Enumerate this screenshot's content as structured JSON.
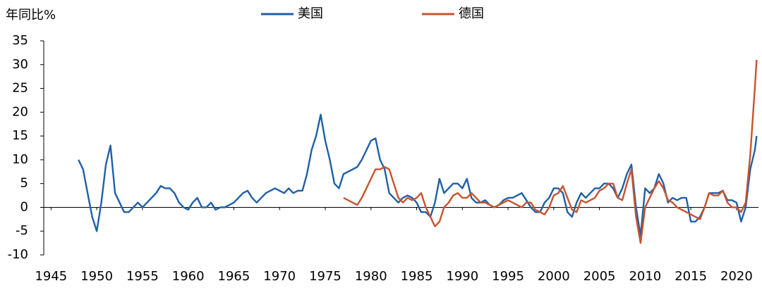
{
  "chart_data": {
    "type": "line",
    "ylabel": "年同比%",
    "xlim": [
      1944.2,
      2022.4
    ],
    "xticks": [
      1945,
      1950,
      1955,
      1960,
      1965,
      1970,
      1975,
      1980,
      1985,
      1990,
      1995,
      2000,
      2005,
      2010,
      2015,
      2020
    ],
    "ylim": [
      -10,
      35
    ],
    "yticks": [
      -10,
      -5,
      0,
      5,
      10,
      15,
      20,
      25,
      30,
      35
    ],
    "grid": false,
    "legend": "top",
    "series": [
      {
        "name": "美国",
        "color": "#1f5fa6",
        "x": [
          1948,
          1948.5,
          1949,
          1949.5,
          1950,
          1950.5,
          1951,
          1951.5,
          1952,
          1952.5,
          1953,
          1953.5,
          1954,
          1954.5,
          1955,
          1955.5,
          1956,
          1956.5,
          1957,
          1957.5,
          1958,
          1958.5,
          1959,
          1959.5,
          1960,
          1960.5,
          1961,
          1961.5,
          1962,
          1962.5,
          1963,
          1963.5,
          1964,
          1964.5,
          1965,
          1965.5,
          1966,
          1966.5,
          1967,
          1967.5,
          1968,
          1968.5,
          1969,
          1969.5,
          1970,
          1970.5,
          1971,
          1971.5,
          1972,
          1972.5,
          1973,
          1973.5,
          1974,
          1974.5,
          1975,
          1975.5,
          1976,
          1976.5,
          1977,
          1977.5,
          1978,
          1978.5,
          1979,
          1979.5,
          1980,
          1980.5,
          1981,
          1981.5,
          1982,
          1982.5,
          1983,
          1983.5,
          1984,
          1984.5,
          1985,
          1985.5,
          1986,
          1986.5,
          1987,
          1987.5,
          1988,
          1988.5,
          1989,
          1989.5,
          1990,
          1990.5,
          1991,
          1991.5,
          1992,
          1992.5,
          1993,
          1993.5,
          1994,
          1994.5,
          1995,
          1995.5,
          1996,
          1996.5,
          1997,
          1997.5,
          1998,
          1998.5,
          1999,
          1999.5,
          2000,
          2000.5,
          2001,
          2001.5,
          2002,
          2002.5,
          2003,
          2003.5,
          2004,
          2004.5,
          2005,
          2005.5,
          2006,
          2006.5,
          2007,
          2007.5,
          2008,
          2008.5,
          2009,
          2009.5,
          2010,
          2010.5,
          2011,
          2011.5,
          2012,
          2012.5,
          2013,
          2013.5,
          2014,
          2014.5,
          2015,
          2015.5,
          2016,
          2016.5,
          2017,
          2017.5,
          2018,
          2018.5,
          2019,
          2019.5,
          2020,
          2020.5,
          2021,
          2021.5,
          2022,
          2022.2
        ],
        "values": [
          10,
          8,
          3,
          -2,
          -5,
          1,
          9,
          13,
          3,
          1,
          -1,
          -1,
          0,
          1,
          0,
          1,
          2,
          3,
          4.5,
          4,
          4,
          3,
          1,
          0,
          -0.5,
          1,
          2,
          0,
          0,
          1,
          -0.5,
          0,
          0,
          0.5,
          1,
          2,
          3,
          3.5,
          2,
          1,
          2,
          3,
          3.5,
          4,
          3.5,
          3,
          4,
          3,
          3.5,
          3.5,
          7,
          12,
          15,
          19.5,
          14,
          10,
          5,
          4,
          7,
          7.5,
          8,
          8.5,
          10,
          12,
          14,
          14.5,
          10,
          8,
          3,
          2,
          1,
          2,
          2.5,
          2,
          1,
          -1,
          -1,
          -2,
          1,
          6,
          3,
          4,
          5,
          5,
          4,
          6,
          2,
          1,
          1,
          1.5,
          0.5,
          0,
          0.5,
          1.5,
          2,
          2,
          2.5,
          3,
          1.5,
          0,
          -1,
          -1,
          1,
          2,
          4,
          4,
          3,
          -1,
          -2,
          1,
          3,
          2,
          3,
          4,
          4,
          5,
          5,
          4,
          2,
          4,
          7,
          9,
          0,
          -6,
          4,
          3,
          4,
          7,
          5,
          1,
          2,
          1.5,
          2,
          2,
          -3,
          -3,
          -2,
          0,
          3,
          3,
          3,
          3.5,
          1.5,
          1.5,
          1,
          -3,
          0,
          8,
          12,
          15
        ]
      },
      {
        "name": "德国",
        "color": "#c8532e",
        "x": [
          1977,
          1977.5,
          1978,
          1978.5,
          1979,
          1979.5,
          1980,
          1980.5,
          1981,
          1981.5,
          1982,
          1982.5,
          1983,
          1983.5,
          1984,
          1984.5,
          1985,
          1985.5,
          1986,
          1986.5,
          1987,
          1987.5,
          1988,
          1988.5,
          1989,
          1989.5,
          1990,
          1990.5,
          1991,
          1991.5,
          1992,
          1992.5,
          1993,
          1993.5,
          1994,
          1994.5,
          1995,
          1995.5,
          1996,
          1996.5,
          1997,
          1997.5,
          1998,
          1998.5,
          1999,
          1999.5,
          2000,
          2000.5,
          2001,
          2001.5,
          2002,
          2002.5,
          2003,
          2003.5,
          2004,
          2004.5,
          2005,
          2005.5,
          2006,
          2006.5,
          2007,
          2007.5,
          2008,
          2008.5,
          2009,
          2009.5,
          2010,
          2010.5,
          2011,
          2011.5,
          2012,
          2012.5,
          2013,
          2013.5,
          2014,
          2014.5,
          2015,
          2015.5,
          2016,
          2016.5,
          2017,
          2017.5,
          2018,
          2018.5,
          2019,
          2019.5,
          2020,
          2020.5,
          2021,
          2021.5,
          2022,
          2022.2
        ],
        "values": [
          2,
          1.5,
          1,
          0.5,
          2,
          4,
          6,
          8,
          8,
          8.5,
          8,
          5,
          2,
          1,
          2,
          1.5,
          2,
          3,
          0,
          -2,
          -4,
          -3,
          0,
          1,
          2.5,
          3,
          2,
          2,
          3,
          2,
          1,
          1,
          0.5,
          0,
          0.5,
          1,
          1.5,
          1,
          0.5,
          0,
          1,
          1,
          -0.5,
          -1,
          -1.5,
          0,
          2.5,
          3,
          4.5,
          2,
          -0.5,
          -1,
          1.5,
          1,
          1.5,
          2,
          3.5,
          4,
          5,
          5,
          2,
          1.5,
          5,
          8,
          -2,
          -7.5,
          0,
          2,
          4,
          5.5,
          4,
          1.5,
          1,
          0,
          -0.5,
          -1,
          -1.5,
          -2,
          -2.5,
          0,
          3,
          2.5,
          2.5,
          3.5,
          1,
          0,
          0,
          -1,
          1,
          11,
          25,
          31
        ]
      }
    ]
  }
}
